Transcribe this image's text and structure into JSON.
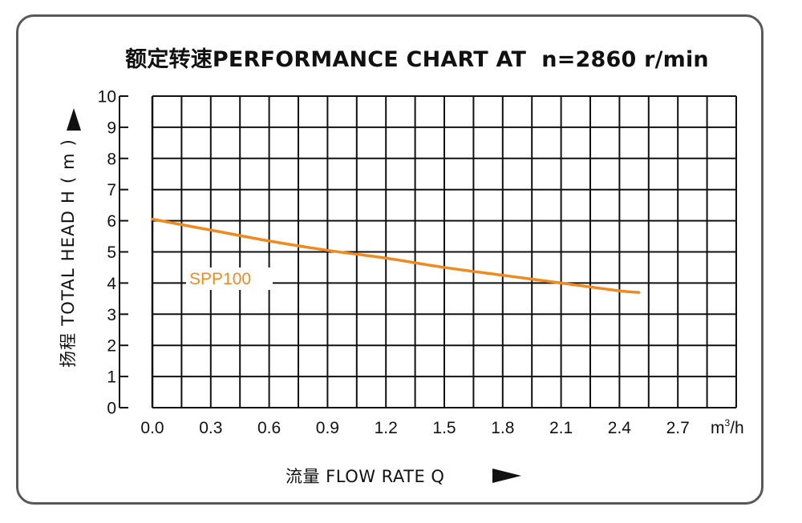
{
  "colors": {
    "series": "#ee8a1f",
    "grid": "#111111",
    "frame": "#58595b"
  },
  "chart_data": {
    "type": "line",
    "title": "额定转速PERFORMANCE CHART AT  n=2860 r/min",
    "xlabel": "流量 FLOW RATE  Q",
    "ylabel": "扬程 TOTAL HEAD  H ( m )",
    "x_unit": {
      "base": "m",
      "sup": "3",
      "tail": "/h"
    },
    "xlim": [
      0,
      3.0
    ],
    "ylim": [
      0,
      10
    ],
    "x_ticks": [
      "0.0",
      "0.3",
      "0.6",
      "0.9",
      "1.2",
      "1.5",
      "1.8",
      "2.1",
      "2.4",
      "2.7"
    ],
    "y_ticks": [
      "0",
      "1",
      "2",
      "3",
      "4",
      "5",
      "6",
      "7",
      "8",
      "9",
      "10"
    ],
    "grid": true,
    "series": [
      {
        "name": "SPP100",
        "x": [
          0.0,
          0.3,
          0.6,
          0.9,
          1.2,
          1.5,
          1.8,
          2.1,
          2.4,
          2.5
        ],
        "y": [
          6.05,
          5.7,
          5.35,
          5.05,
          4.8,
          4.5,
          4.25,
          4.0,
          3.75,
          3.7
        ]
      }
    ]
  }
}
